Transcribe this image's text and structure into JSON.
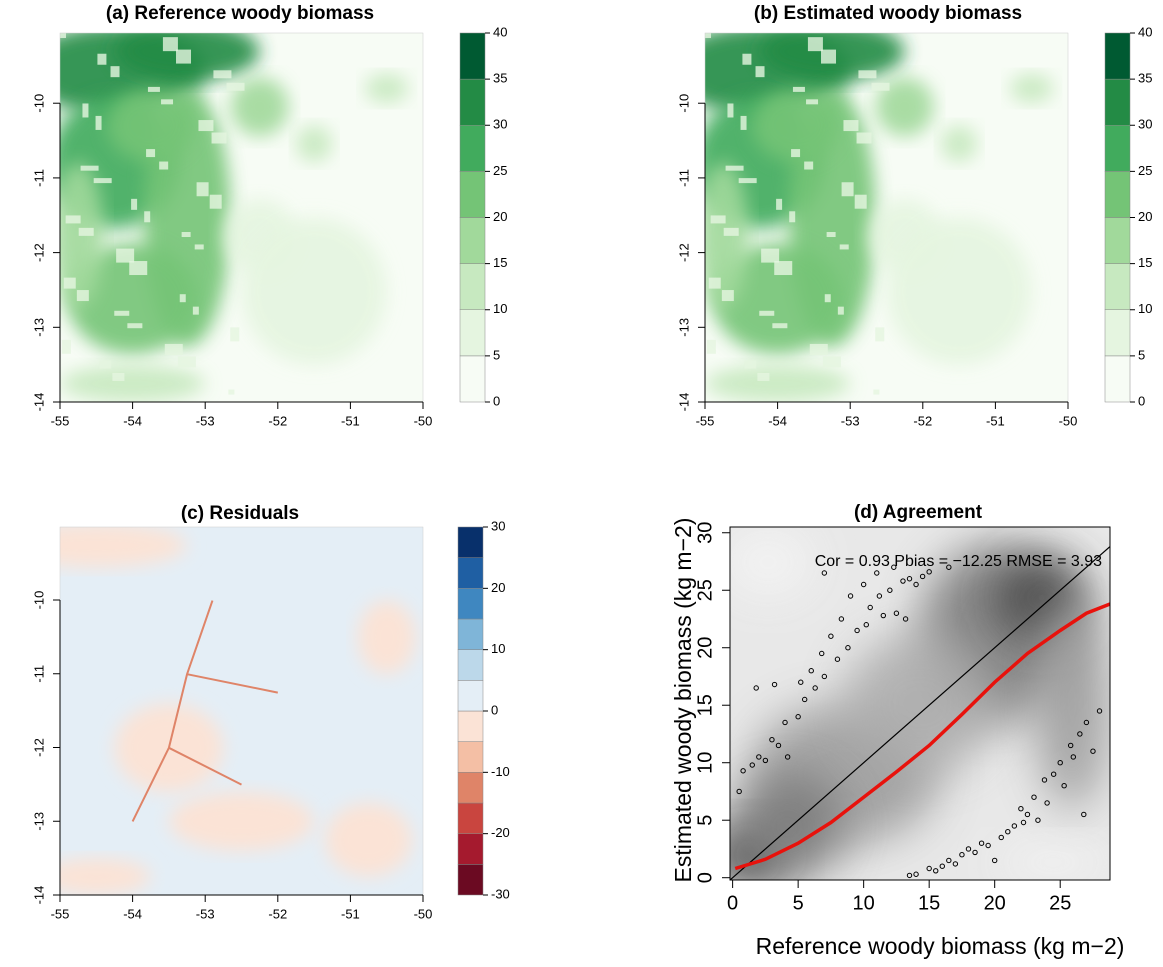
{
  "chart_data": [
    {
      "type": "raster",
      "title": "(a) Reference woody biomass",
      "xlim": [
        -55,
        -50
      ],
      "xticks": [
        -55,
        -54,
        -53,
        -52,
        -51,
        -50
      ],
      "ylim": [
        -14,
        -9.06
      ],
      "yticks": [
        -14,
        -13,
        -12,
        -11,
        -10
      ],
      "colorbar": {
        "lim": [
          0,
          40
        ],
        "ticks": [
          0,
          5,
          10,
          15,
          20,
          25,
          30,
          35,
          40
        ],
        "colors": [
          "#f7fcf5",
          "#e5f5e0",
          "#c7e9c0",
          "#a1d99b",
          "#74c476",
          "#41ab5d",
          "#238b45",
          "#005a32"
        ]
      }
    },
    {
      "type": "raster",
      "title": "(b) Estimated woody biomass",
      "xlim": [
        -55,
        -50
      ],
      "xticks": [
        -55,
        -54,
        -53,
        -52,
        -51,
        -50
      ],
      "ylim": [
        -14,
        -9.06
      ],
      "yticks": [
        -14,
        -13,
        -12,
        -11,
        -10
      ],
      "colorbar": {
        "lim": [
          0,
          40
        ],
        "ticks": [
          0,
          5,
          10,
          15,
          20,
          25,
          30,
          35,
          40
        ],
        "colors": [
          "#f7fcf5",
          "#e5f5e0",
          "#c7e9c0",
          "#a1d99b",
          "#74c476",
          "#41ab5d",
          "#238b45",
          "#005a32"
        ]
      }
    },
    {
      "type": "raster",
      "title": "(c) Residuals",
      "xlim": [
        -55,
        -50
      ],
      "xticks": [
        -55,
        -54,
        -53,
        -52,
        -51,
        -50
      ],
      "ylim": [
        -14,
        -9.01
      ],
      "yticks": [
        -14,
        -13,
        -12,
        -11,
        -10
      ],
      "colorbar": {
        "lim": [
          -30,
          30
        ],
        "ticks": [
          -30,
          -20,
          -10,
          0,
          10,
          20,
          30
        ],
        "colors": [
          "#6b0a22",
          "#a51a2e",
          "#c9453f",
          "#df8468",
          "#f4bfa5",
          "#fbe3d6",
          "#e4eef6",
          "#bcd8ea",
          "#7fb5d8",
          "#3f87c0",
          "#1f5fa3",
          "#08306b"
        ]
      }
    },
    {
      "type": "scatter",
      "title": "(d) Agreement",
      "x_label": "Reference woody biomass (kg m−2)",
      "y_label": "Estimated woody biomass (kg m−2)",
      "annotation": "Cor = 0.93 Pbias = −12.25 RMSE = 3.93",
      "annotation_color": "#e8120c",
      "xlim": [
        -0.2,
        28.8
      ],
      "xticks": [
        0,
        5,
        10,
        15,
        20,
        25
      ],
      "ylim": [
        -0.2,
        30.5
      ],
      "yticks": [
        0,
        5,
        10,
        15,
        20,
        25,
        30
      ],
      "x": [
        0.5,
        0.8,
        1.5,
        2,
        2.5,
        1.8,
        3,
        3.5,
        3.2,
        4,
        4.2,
        5,
        5.2,
        5.5,
        6,
        6.3,
        6.8,
        7,
        7,
        7.5,
        8,
        8.3,
        8.8,
        9,
        9.5,
        10,
        10.2,
        10.5,
        11,
        11.2,
        11.5,
        12,
        12.3,
        12.5,
        13,
        13.2,
        13.5,
        14,
        14.5,
        15,
        16.5,
        13.5,
        14,
        15,
        15.5,
        16,
        16.5,
        17,
        17.5,
        18,
        18.5,
        19,
        19.5,
        20,
        20.5,
        21,
        21.5,
        22,
        22.2,
        22.5,
        23,
        23.3,
        23.8,
        24,
        24.5,
        25,
        25.3,
        25.8,
        26,
        26.5,
        26.8,
        27,
        27.5,
        28
      ],
      "values": [
        7.5,
        9.3,
        9.8,
        10.5,
        10.2,
        16.5,
        12,
        11.5,
        16.8,
        13.5,
        10.5,
        14,
        17,
        15.5,
        18,
        16.5,
        19.5,
        26.5,
        17.5,
        21,
        19,
        22.5,
        20,
        24.5,
        21.5,
        25.5,
        22,
        23.5,
        26.5,
        24.5,
        22.8,
        25,
        27,
        23,
        25.8,
        22.5,
        26,
        25.5,
        26.2,
        26.6,
        27,
        0.2,
        0.3,
        0.8,
        0.6,
        1,
        1.5,
        1.2,
        2,
        2.5,
        2.2,
        3,
        2.8,
        1.5,
        3.5,
        4,
        4.5,
        6,
        4.8,
        5.5,
        7,
        5,
        8.5,
        6.5,
        9,
        10,
        8,
        11.5,
        10.5,
        12.5,
        5.5,
        13.5,
        11,
        14.5
      ],
      "lines": [
        {
          "color": "#000000",
          "x": [
            -0.2,
            28.8
          ],
          "values": [
            -0.2,
            28.8
          ]
        },
        {
          "color": "#e8120c",
          "x": [
            0.2,
            2.5,
            5,
            7.5,
            10,
            12.5,
            15,
            17.5,
            20,
            22.5,
            25,
            27,
            28.8
          ],
          "values": [
            0.8,
            1.6,
            3,
            4.8,
            7,
            9.2,
            11.5,
            14.2,
            17,
            19.5,
            21.5,
            23,
            23.8
          ]
        }
      ]
    }
  ]
}
